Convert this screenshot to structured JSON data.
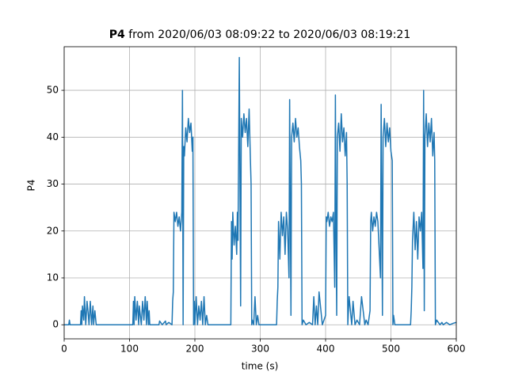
{
  "chart_data": {
    "type": "line",
    "title_parts": [
      "P4",
      "from 2020/06/03 08:09:22 to 2020/06/03 08:19:21"
    ],
    "xlabel": "time (s)",
    "ylabel": "P4",
    "x": [
      0,
      7,
      8,
      9,
      25,
      26,
      27,
      28,
      30,
      31,
      33,
      35,
      37,
      38,
      40,
      42,
      44,
      45,
      47,
      49,
      50,
      105,
      106,
      107,
      108,
      110,
      112,
      114,
      115,
      118,
      120,
      122,
      124,
      126,
      127,
      129,
      130,
      131,
      145,
      146,
      150,
      155,
      156,
      160,
      165,
      166,
      167,
      168,
      170,
      172,
      174,
      176,
      178,
      180,
      181,
      182,
      183,
      184,
      186,
      188,
      190,
      192,
      194,
      196,
      197,
      198,
      199,
      200,
      202,
      204,
      206,
      208,
      210,
      212,
      214,
      216,
      218,
      220,
      255,
      256,
      257,
      258,
      260,
      262,
      264,
      265,
      266,
      268,
      269,
      270,
      271,
      273,
      275,
      277,
      279,
      281,
      283,
      285,
      286,
      287,
      288,
      290,
      292,
      294,
      296,
      298,
      300,
      325,
      326,
      327,
      328,
      330,
      332,
      334,
      336,
      338,
      340,
      342,
      344,
      345,
      346,
      347,
      348,
      350,
      352,
      354,
      356,
      358,
      360,
      362,
      363,
      364,
      366,
      370,
      375,
      380,
      382,
      384,
      386,
      388,
      390,
      395,
      400,
      401,
      402,
      404,
      406,
      408,
      410,
      412,
      414,
      415,
      416,
      417,
      418,
      420,
      422,
      424,
      426,
      428,
      430,
      432,
      433,
      434,
      436,
      440,
      442,
      445,
      448,
      452,
      455,
      460,
      462,
      465,
      468,
      469,
      470,
      472,
      474,
      476,
      478,
      480,
      482,
      484,
      485,
      486,
      487,
      488,
      490,
      492,
      494,
      496,
      498,
      500,
      502,
      503,
      504,
      506,
      510,
      530,
      531,
      532,
      533,
      535,
      537,
      539,
      541,
      543,
      545,
      547,
      549,
      550,
      551,
      552,
      554,
      556,
      558,
      560,
      562,
      564,
      566,
      567,
      568,
      570,
      575,
      578,
      580,
      585,
      590,
      595,
      600
    ],
    "series": [
      {
        "name": "P4",
        "color": "#1f77b4",
        "values": [
          0,
          0,
          1,
          0,
          0,
          3,
          0,
          4,
          1,
          6,
          0,
          5,
          2,
          0,
          5,
          0,
          4,
          0,
          3,
          0,
          0,
          0,
          5,
          0,
          6,
          1,
          5,
          0,
          4,
          0,
          5,
          1,
          6,
          0,
          5,
          0,
          3,
          0,
          0,
          0.8,
          0,
          0.8,
          0,
          0.5,
          0,
          5,
          7,
          24,
          22,
          24,
          21,
          23,
          20,
          24,
          50,
          0,
          38,
          36,
          42,
          39,
          44,
          41,
          43,
          37,
          40,
          0,
          5,
          0,
          6,
          0,
          4,
          1,
          5,
          0,
          6,
          0,
          2,
          0,
          0,
          22,
          14,
          24,
          17,
          21,
          15,
          24,
          18,
          57,
          30,
          4,
          44,
          40,
          45,
          41,
          44,
          38,
          46,
          35,
          30,
          0,
          1,
          0,
          6,
          0,
          2,
          0,
          0,
          0,
          5,
          8,
          22,
          14,
          24,
          19,
          23,
          15,
          24,
          20,
          10,
          48,
          25,
          2,
          40,
          43,
          39,
          44,
          40,
          42,
          38,
          35,
          30,
          0,
          1,
          0,
          0.5,
          0,
          6,
          0,
          4,
          0,
          7,
          0,
          2,
          23,
          22,
          24,
          21,
          23,
          22,
          24,
          8,
          49,
          20,
          2,
          40,
          43,
          37,
          45,
          39,
          42,
          36,
          41,
          30,
          0,
          6,
          0,
          5,
          0,
          1,
          0,
          6,
          0,
          1,
          0,
          3,
          22,
          24,
          20,
          23,
          21,
          24,
          22,
          16,
          10,
          47,
          25,
          2,
          40,
          44,
          38,
          43,
          39,
          42,
          37,
          35,
          0,
          2,
          0,
          0,
          0,
          3,
          8,
          18,
          24,
          16,
          22,
          14,
          23,
          20,
          24,
          12,
          50,
          3,
          40,
          45,
          38,
          43,
          39,
          44,
          36,
          41,
          35,
          0,
          1,
          0,
          0.5,
          0,
          0.5,
          0,
          0.3,
          0.5
        ]
      }
    ],
    "xlim": [
      0,
      600
    ],
    "xticks": [
      0,
      100,
      200,
      300,
      400,
      500,
      600
    ],
    "ylim": [
      -3,
      59.3
    ],
    "yticks": [
      0,
      10,
      20,
      30,
      40,
      50
    ],
    "grid": true
  }
}
